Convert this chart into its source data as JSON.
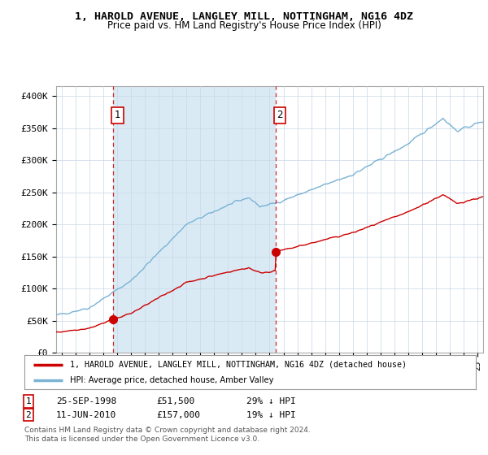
{
  "title": "1, HAROLD AVENUE, LANGLEY MILL, NOTTINGHAM, NG16 4DZ",
  "subtitle": "Price paid vs. HM Land Registry's House Price Index (HPI)",
  "ylabel_ticks": [
    "£0",
    "£50K",
    "£100K",
    "£150K",
    "£200K",
    "£250K",
    "£300K",
    "£350K",
    "£400K"
  ],
  "ytick_values": [
    0,
    50000,
    100000,
    150000,
    200000,
    250000,
    300000,
    350000,
    400000
  ],
  "ylim": [
    0,
    415000
  ],
  "xlim_start": 1994.6,
  "xlim_end": 2025.4,
  "sale1": {
    "date_num": 1998.73,
    "price": 51500,
    "label": "1"
  },
  "sale2": {
    "date_num": 2010.44,
    "price": 157000,
    "label": "2"
  },
  "hpi_color": "#7ab3d4",
  "hpi_fill_color": "#daeaf5",
  "sale_color": "#cc0000",
  "vline_color": "#cc0000",
  "legend_entry1": "1, HAROLD AVENUE, LANGLEY MILL, NOTTINGHAM, NG16 4DZ (detached house)",
  "legend_entry2": "HPI: Average price, detached house, Amber Valley",
  "table_rows": [
    [
      "1",
      "25-SEP-1998",
      "£51,500",
      "29% ↓ HPI"
    ],
    [
      "2",
      "11-JUN-2010",
      "£157,000",
      "19% ↓ HPI"
    ]
  ],
  "footnote": "Contains HM Land Registry data © Crown copyright and database right 2024.\nThis data is licensed under the Open Government Licence v3.0."
}
